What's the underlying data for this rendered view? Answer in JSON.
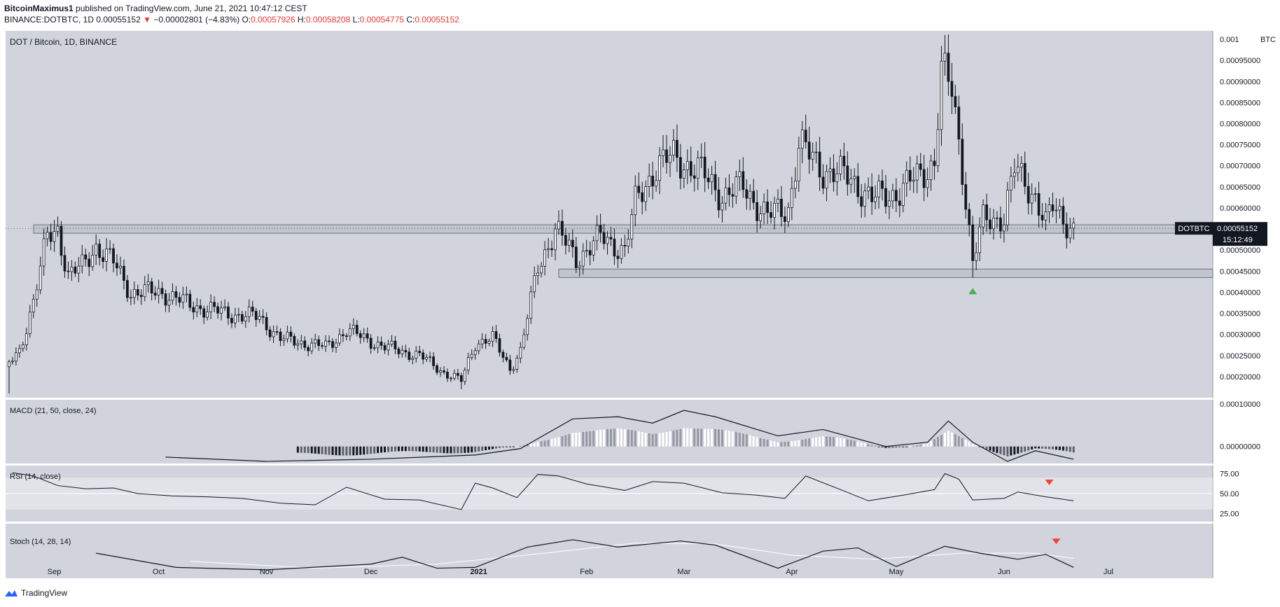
{
  "header": {
    "author": "BitcoinMaximus1",
    "published": "published on TradingView.com, June 21, 2021 10:47:12 CEST",
    "symbol": "BINANCE:DOTBTC, 1D",
    "last": "0.00055152",
    "change": "−0.00002801 (−4.83%)",
    "open_label": "O:",
    "open": "0.00057926",
    "high_label": "H:",
    "high": "0.00058208",
    "low_label": "L:",
    "low": "0.00054775",
    "close_label": "C:",
    "close": "0.00055152"
  },
  "chart_data": {
    "type": "candlestick",
    "title": "DOT / Bitcoin, 1D, BINANCE",
    "y_unit": "BTC",
    "ylim": [
      0.00015,
      0.00102
    ],
    "price_ticks": [
      "0.00020000",
      "0.00025000",
      "0.00030000",
      "0.00035000",
      "0.00040000",
      "0.00045000",
      "0.00050000",
      "0.00055000",
      "0.00060000",
      "0.00065000",
      "0.00070000",
      "0.00075000",
      "0.00080000",
      "0.00085000",
      "0.00090000",
      "0.00095000",
      "0.001"
    ],
    "price_tick_values": [
      0.0002,
      0.00025,
      0.0003,
      0.00035,
      0.0004,
      0.00045,
      0.0005,
      0.00055,
      0.0006,
      0.00065,
      0.0007,
      0.00075,
      0.0008,
      0.00085,
      0.0009,
      0.00095,
      0.001
    ],
    "x_labels": [
      "Sep",
      "Oct",
      "Nov",
      "Dec",
      "2021",
      "Feb",
      "Mar",
      "Apr",
      "May",
      "Jun",
      "Jul"
    ],
    "x_range": [
      "2020-08-18",
      "2021-07-31"
    ],
    "x_label_dates": [
      "2020-09-01",
      "2020-10-01",
      "2020-11-01",
      "2020-12-01",
      "2021-01-01",
      "2021-02-01",
      "2021-03-01",
      "2021-04-01",
      "2021-05-01",
      "2021-06-01",
      "2021-07-01"
    ],
    "key_points": [
      {
        "date": "2020-08-19",
        "close": 0.00023
      },
      {
        "date": "2020-08-22",
        "close": 0.00026
      },
      {
        "date": "2020-08-26",
        "close": 0.00038
      },
      {
        "date": "2020-08-30",
        "close": 0.00053
      },
      {
        "date": "2020-09-02",
        "close": 0.00055
      },
      {
        "date": "2020-09-05",
        "close": 0.00044
      },
      {
        "date": "2020-09-09",
        "close": 0.00046
      },
      {
        "date": "2020-09-13",
        "close": 0.00051
      },
      {
        "date": "2020-09-18",
        "close": 0.00047
      },
      {
        "date": "2020-09-23",
        "close": 0.0004
      },
      {
        "date": "2020-10-02",
        "close": 0.0004
      },
      {
        "date": "2020-10-10",
        "close": 0.00037
      },
      {
        "date": "2020-10-20",
        "close": 0.00035
      },
      {
        "date": "2020-10-30",
        "close": 0.00034
      },
      {
        "date": "2020-11-05",
        "close": 0.00029
      },
      {
        "date": "2020-11-18",
        "close": 0.00027
      },
      {
        "date": "2020-11-24",
        "close": 0.00031
      },
      {
        "date": "2020-12-05",
        "close": 0.00027
      },
      {
        "date": "2020-12-15",
        "close": 0.00025
      },
      {
        "date": "2020-12-22",
        "close": 0.00021
      },
      {
        "date": "2020-12-27",
        "close": 0.00019
      },
      {
        "date": "2020-12-31",
        "close": 0.00028
      },
      {
        "date": "2021-01-05",
        "close": 0.00029
      },
      {
        "date": "2021-01-10",
        "close": 0.00022
      },
      {
        "date": "2021-01-13",
        "close": 0.00026
      },
      {
        "date": "2021-01-18",
        "close": 0.00046
      },
      {
        "date": "2021-01-23",
        "close": 0.00055
      },
      {
        "date": "2021-01-29",
        "close": 0.00048
      },
      {
        "date": "2021-02-05",
        "close": 0.00053
      },
      {
        "date": "2021-02-12",
        "close": 0.0005
      },
      {
        "date": "2021-02-15",
        "close": 0.00061
      },
      {
        "date": "2021-02-21",
        "close": 0.0007
      },
      {
        "date": "2021-02-26",
        "close": 0.00072
      },
      {
        "date": "2021-03-05",
        "close": 0.00069
      },
      {
        "date": "2021-03-12",
        "close": 0.00063
      },
      {
        "date": "2021-03-18",
        "close": 0.00065
      },
      {
        "date": "2021-03-25",
        "close": 0.00058
      },
      {
        "date": "2021-03-31",
        "close": 0.0006
      },
      {
        "date": "2021-04-03",
        "close": 0.00075
      },
      {
        "date": "2021-04-10",
        "close": 0.00069
      },
      {
        "date": "2021-04-18",
        "close": 0.00067
      },
      {
        "date": "2021-04-24",
        "close": 0.00062
      },
      {
        "date": "2021-05-02",
        "close": 0.00064
      },
      {
        "date": "2021-05-08",
        "close": 0.00068
      },
      {
        "date": "2021-05-12",
        "close": 0.00071
      },
      {
        "date": "2021-05-14",
        "close": 0.00092
      },
      {
        "date": "2021-05-17",
        "close": 0.00088
      },
      {
        "date": "2021-05-20",
        "close": 0.0007
      },
      {
        "date": "2021-05-23",
        "close": 0.00047
      },
      {
        "date": "2021-05-26",
        "close": 0.00057
      },
      {
        "date": "2021-06-01",
        "close": 0.00058
      },
      {
        "date": "2021-06-04",
        "close": 0.00069
      },
      {
        "date": "2021-06-10",
        "close": 0.00063
      },
      {
        "date": "2021-06-13",
        "close": 0.00056
      },
      {
        "date": "2021-06-15",
        "close": 0.0006
      },
      {
        "date": "2021-06-21",
        "close": 0.00055152
      }
    ],
    "horizontal_zones": [
      {
        "low": 0.00054,
        "high": 0.00056
      },
      {
        "low": 0.000435,
        "high": 0.000455
      }
    ],
    "extremes": [
      {
        "date": "2020-08-19",
        "low": 0.00016
      },
      {
        "date": "2020-12-27",
        "low": 0.00017
      },
      {
        "date": "2021-05-15",
        "high": 0.00101
      },
      {
        "date": "2021-05-23",
        "low": 0.000435
      }
    ],
    "up_marker": {
      "date": "2021-05-23",
      "color": "#4caf50"
    },
    "current_price_label": {
      "symbol": "DOTBTC",
      "price": "0.00055152",
      "countdown": "15:12:49"
    },
    "panes": {
      "macd": {
        "label": "MACD (21, 50, close, 24)",
        "ticks": [
          "0.00010000",
          "0.00000000"
        ],
        "tick_values": [
          0.0001,
          0.0
        ],
        "ylim": [
          -4e-05,
          0.00011
        ],
        "line": [
          {
            "date": "2020-10-03",
            "v": -2.5e-05
          },
          {
            "date": "2020-11-01",
            "v": -3.5e-05
          },
          {
            "date": "2020-12-01",
            "v": -3e-05
          },
          {
            "date": "2020-12-31",
            "v": -2e-05
          },
          {
            "date": "2021-01-13",
            "v": -5e-06
          },
          {
            "date": "2021-01-28",
            "v": 6.5e-05
          },
          {
            "date": "2021-02-10",
            "v": 7e-05
          },
          {
            "date": "2021-02-20",
            "v": 5.5e-05
          },
          {
            "date": "2021-03-01",
            "v": 8.5e-05
          },
          {
            "date": "2021-03-10",
            "v": 7e-05
          },
          {
            "date": "2021-03-28",
            "v": 2.5e-05
          },
          {
            "date": "2021-04-10",
            "v": 4e-05
          },
          {
            "date": "2021-04-28",
            "v": 0.0
          },
          {
            "date": "2021-05-10",
            "v": 1e-05
          },
          {
            "date": "2021-05-16",
            "v": 6e-05
          },
          {
            "date": "2021-05-23",
            "v": 1e-05
          },
          {
            "date": "2021-06-02",
            "v": -3.5e-05
          },
          {
            "date": "2021-06-10",
            "v": -1e-05
          },
          {
            "date": "2021-06-21",
            "v": -3e-05
          }
        ]
      },
      "rsi": {
        "label": "RSI (14, close)",
        "ticks": [
          "75.00",
          "50.00",
          "25.00"
        ],
        "tick_values": [
          75,
          50,
          25
        ],
        "ylim": [
          15,
          85
        ],
        "band": [
          30,
          70
        ],
        "line": [
          {
            "date": "2020-08-20",
            "v": 76
          },
          {
            "date": "2020-08-26",
            "v": 72
          },
          {
            "date": "2020-09-02",
            "v": 60
          },
          {
            "date": "2020-09-10",
            "v": 56
          },
          {
            "date": "2020-09-18",
            "v": 57
          },
          {
            "date": "2020-09-25",
            "v": 50
          },
          {
            "date": "2020-10-05",
            "v": 47
          },
          {
            "date": "2020-10-15",
            "v": 46
          },
          {
            "date": "2020-10-25",
            "v": 44
          },
          {
            "date": "2020-11-05",
            "v": 38
          },
          {
            "date": "2020-11-15",
            "v": 36
          },
          {
            "date": "2020-11-24",
            "v": 58
          },
          {
            "date": "2020-12-05",
            "v": 43
          },
          {
            "date": "2020-12-15",
            "v": 42
          },
          {
            "date": "2020-12-27",
            "v": 30
          },
          {
            "date": "2020-12-31",
            "v": 63
          },
          {
            "date": "2021-01-05",
            "v": 57
          },
          {
            "date": "2021-01-12",
            "v": 45
          },
          {
            "date": "2021-01-18",
            "v": 74
          },
          {
            "date": "2021-01-24",
            "v": 72
          },
          {
            "date": "2021-02-01",
            "v": 62
          },
          {
            "date": "2021-02-12",
            "v": 54
          },
          {
            "date": "2021-02-20",
            "v": 65
          },
          {
            "date": "2021-03-01",
            "v": 63
          },
          {
            "date": "2021-03-12",
            "v": 51
          },
          {
            "date": "2021-03-22",
            "v": 48
          },
          {
            "date": "2021-03-30",
            "v": 44
          },
          {
            "date": "2021-04-05",
            "v": 72
          },
          {
            "date": "2021-04-15",
            "v": 55
          },
          {
            "date": "2021-04-23",
            "v": 41
          },
          {
            "date": "2021-05-03",
            "v": 48
          },
          {
            "date": "2021-05-12",
            "v": 55
          },
          {
            "date": "2021-05-15",
            "v": 75
          },
          {
            "date": "2021-05-19",
            "v": 68
          },
          {
            "date": "2021-05-23",
            "v": 42
          },
          {
            "date": "2021-06-01",
            "v": 44
          },
          {
            "date": "2021-06-05",
            "v": 52
          },
          {
            "date": "2021-06-13",
            "v": 46
          },
          {
            "date": "2021-06-21",
            "v": 41
          }
        ],
        "down_marker": {
          "date": "2021-06-14",
          "color": "#f44336"
        }
      },
      "stoch": {
        "label": "Stoch (14, 28, 14)",
        "ylim": [
          0,
          100
        ],
        "k_line": [
          {
            "date": "2020-09-13",
            "v": 55
          },
          {
            "date": "2020-10-06",
            "v": 20
          },
          {
            "date": "2020-11-01",
            "v": 14
          },
          {
            "date": "2020-12-01",
            "v": 28
          },
          {
            "date": "2020-12-10",
            "v": 45
          },
          {
            "date": "2020-12-20",
            "v": 18
          },
          {
            "date": "2020-12-31",
            "v": 20
          },
          {
            "date": "2021-01-15",
            "v": 70
          },
          {
            "date": "2021-01-28",
            "v": 88
          },
          {
            "date": "2021-02-10",
            "v": 70
          },
          {
            "date": "2021-02-28",
            "v": 85
          },
          {
            "date": "2021-03-10",
            "v": 75
          },
          {
            "date": "2021-03-28",
            "v": 18
          },
          {
            "date": "2021-04-10",
            "v": 60
          },
          {
            "date": "2021-04-20",
            "v": 68
          },
          {
            "date": "2021-05-01",
            "v": 22
          },
          {
            "date": "2021-05-15",
            "v": 72
          },
          {
            "date": "2021-05-25",
            "v": 55
          },
          {
            "date": "2021-06-05",
            "v": 40
          },
          {
            "date": "2021-06-13",
            "v": 52
          },
          {
            "date": "2021-06-21",
            "v": 20
          }
        ],
        "d_line": [
          {
            "date": "2020-10-10",
            "v": 35
          },
          {
            "date": "2020-11-15",
            "v": 18
          },
          {
            "date": "2020-12-20",
            "v": 28
          },
          {
            "date": "2021-01-20",
            "v": 55
          },
          {
            "date": "2021-02-15",
            "v": 80
          },
          {
            "date": "2021-03-10",
            "v": 78
          },
          {
            "date": "2021-04-01",
            "v": 50
          },
          {
            "date": "2021-04-25",
            "v": 40
          },
          {
            "date": "2021-05-20",
            "v": 55
          },
          {
            "date": "2021-06-10",
            "v": 55
          },
          {
            "date": "2021-06-21",
            "v": 42
          }
        ],
        "down_marker": {
          "date": "2021-06-16",
          "color": "#f44336"
        }
      }
    }
  },
  "footer": {
    "brand": "TradingView"
  }
}
